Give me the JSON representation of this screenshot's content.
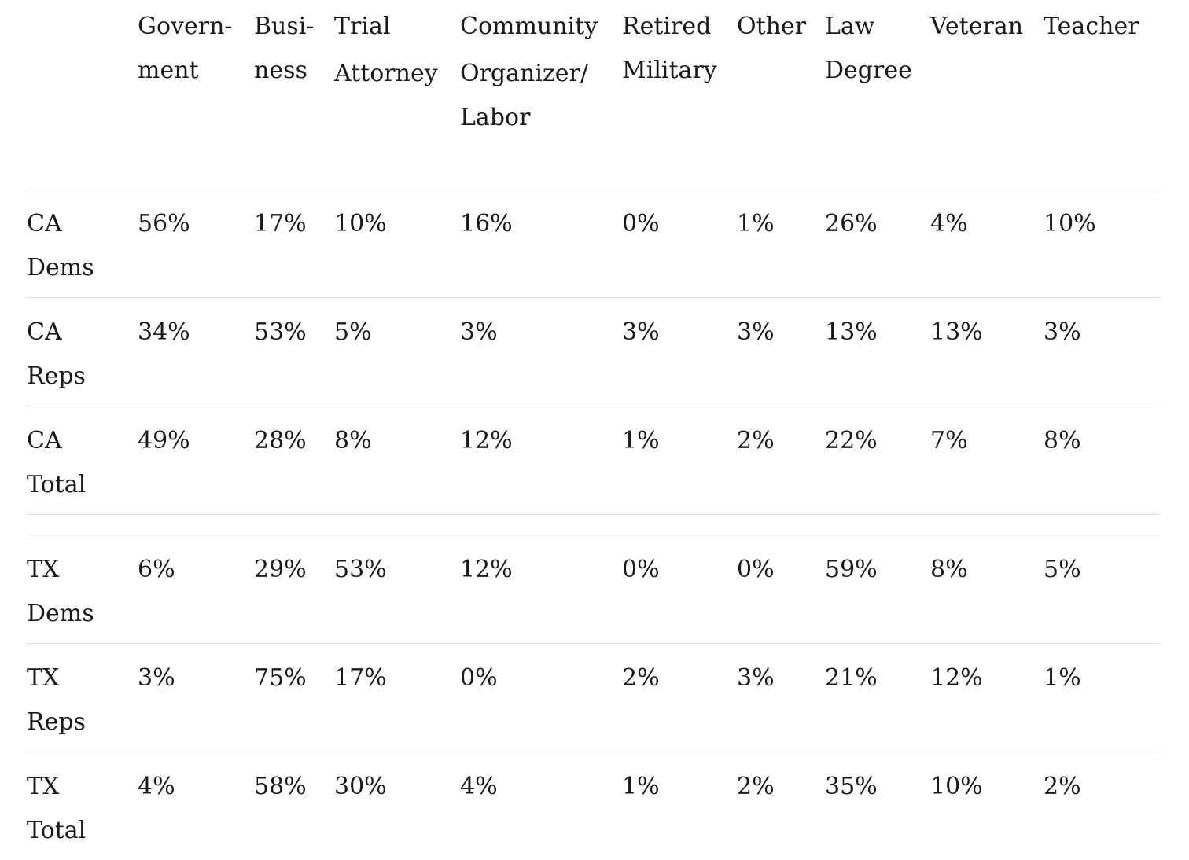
{
  "columns": [
    {
      "key": "government",
      "lines": [
        "Govern-",
        "ment"
      ]
    },
    {
      "key": "business",
      "lines": [
        "Busi-",
        "ness"
      ]
    },
    {
      "key": "trial_attorney",
      "lines": [
        "Trial",
        "",
        "Attorney"
      ]
    },
    {
      "key": "community_organizer_labor",
      "lines": [
        "Community",
        "",
        "Organizer/",
        "Labor"
      ]
    },
    {
      "key": "retired_military",
      "lines": [
        "Retired",
        "Military"
      ]
    },
    {
      "key": "other",
      "lines": [
        "Other"
      ]
    },
    {
      "key": "law_degree",
      "lines": [
        "Law",
        "Degree"
      ]
    },
    {
      "key": "veteran",
      "lines": [
        "Veteran"
      ]
    },
    {
      "key": "teacher",
      "lines": [
        "Teacher"
      ]
    }
  ],
  "groups": [
    {
      "rows": [
        {
          "label": [
            "CA",
            "Dems"
          ],
          "values": [
            "56%",
            "17%",
            "10%",
            "16%",
            "0%",
            "1%",
            "26%",
            "4%",
            "10%"
          ]
        },
        {
          "label": [
            "CA",
            "Reps"
          ],
          "values": [
            "34%",
            "53%",
            "5%",
            "3%",
            "3%",
            "3%",
            "13%",
            "13%",
            "3%"
          ]
        },
        {
          "label": [
            "CA",
            "Total"
          ],
          "values": [
            "49%",
            "28%",
            "8%",
            "12%",
            "1%",
            "2%",
            "22%",
            "7%",
            "8%"
          ]
        }
      ]
    },
    {
      "rows": [
        {
          "label": [
            "TX",
            "Dems"
          ],
          "values": [
            "6%",
            "29%",
            "53%",
            "12%",
            "0%",
            "0%",
            "59%",
            "8%",
            "5%"
          ]
        },
        {
          "label": [
            "TX",
            "Reps"
          ],
          "values": [
            "3%",
            "75%",
            "17%",
            "0%",
            "2%",
            "3%",
            "21%",
            "12%",
            "1%"
          ]
        },
        {
          "label": [
            "TX",
            "Total"
          ],
          "values": [
            "4%",
            "58%",
            "30%",
            "4%",
            "1%",
            "2%",
            "35%",
            "10%",
            "2%"
          ]
        }
      ]
    }
  ]
}
